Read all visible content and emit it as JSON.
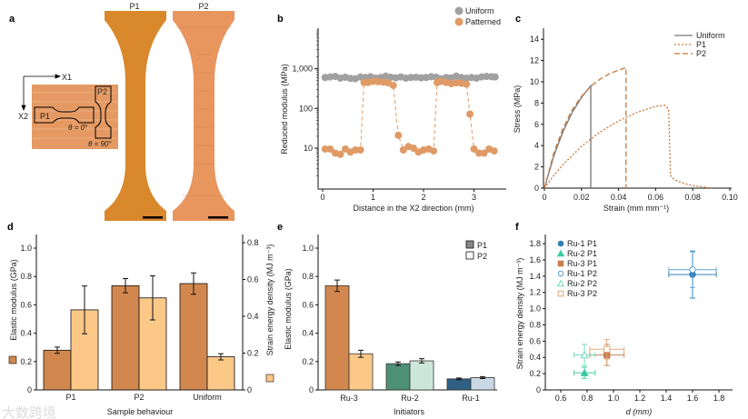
{
  "panel_labels": {
    "a": "a",
    "b": "b",
    "c": "c",
    "d": "d",
    "e": "e",
    "f": "f"
  },
  "panel_a": {
    "sample_labels": [
      "P1",
      "P2"
    ],
    "axis_x1": "X1",
    "axis_x2": "X2",
    "inset_p1": "P1",
    "inset_p2": "P2",
    "theta_0": "θ = 0°",
    "theta_90": "θ = 90°",
    "colors": {
      "p1": "#d9882b",
      "p2": "#e8955e",
      "inset": "#e59a63"
    }
  },
  "watermark": "大数跨境",
  "chart_data": [
    {
      "id": "b",
      "type": "scatter",
      "xlabel": "Distance in the X2 direction (mm)",
      "ylabel": "Reduced modulus (MPa)",
      "yscale": "log",
      "xlim": [
        -0.1,
        3.6
      ],
      "ylim": [
        1,
        10000
      ],
      "xticks": [
        "0",
        "1",
        "2",
        "3"
      ],
      "yticks": [
        "10",
        "100",
        "1,000"
      ],
      "legend": "top-right",
      "series": [
        {
          "name": "Uniform",
          "color": "#a0a0a0",
          "x": [
            0.05,
            0.15,
            0.25,
            0.35,
            0.45,
            0.55,
            0.65,
            0.75,
            0.85,
            0.95,
            1.05,
            1.15,
            1.25,
            1.35,
            1.45,
            1.55,
            1.65,
            1.75,
            1.85,
            1.95,
            2.05,
            2.15,
            2.25,
            2.35,
            2.45,
            2.55,
            2.65,
            2.75,
            2.85,
            2.95,
            3.05,
            3.15,
            3.25,
            3.35,
            3.42
          ],
          "y": [
            600,
            620,
            640,
            580,
            610,
            570,
            560,
            620,
            600,
            630,
            580,
            600,
            650,
            610,
            590,
            620,
            580,
            600,
            610,
            590,
            600,
            630,
            610,
            560,
            600,
            590,
            650,
            600,
            580,
            600,
            580,
            620,
            640,
            630,
            620
          ]
        },
        {
          "name": "Patterned",
          "color": "#e09a66",
          "dashed": true,
          "x": [
            0.05,
            0.15,
            0.25,
            0.35,
            0.45,
            0.55,
            0.65,
            0.75,
            0.82,
            0.9,
            1.0,
            1.1,
            1.2,
            1.3,
            1.4,
            1.5,
            1.6,
            1.7,
            1.8,
            1.9,
            2.0,
            2.1,
            2.2,
            2.27,
            2.35,
            2.45,
            2.55,
            2.65,
            2.75,
            2.85,
            2.92,
            3.0,
            3.1,
            3.2,
            3.3,
            3.4
          ],
          "y": [
            9.5,
            9.5,
            7.5,
            7,
            9.5,
            8,
            9,
            9,
            450,
            450,
            480,
            470,
            460,
            440,
            380,
            21,
            9,
            11,
            10,
            8,
            9,
            9.5,
            8.5,
            450,
            480,
            450,
            420,
            440,
            430,
            410,
            72,
            9.5,
            7.5,
            7.5,
            9.5,
            8.5
          ]
        }
      ]
    },
    {
      "id": "c",
      "type": "line",
      "xlabel": "Strain (mm mm⁻¹)",
      "ylabel": "Stress (MPa)",
      "xlim": [
        0,
        0.1
      ],
      "ylim": [
        0,
        15
      ],
      "xticks": [
        "0",
        "0.02",
        "0.04",
        "0.06",
        "0.08",
        "0.10"
      ],
      "yticks": [
        "0",
        "2",
        "4",
        "6",
        "8",
        "10",
        "12",
        "14"
      ],
      "legend": "top-right",
      "series": [
        {
          "name": "Uniform",
          "color": "#777777",
          "style": "solid",
          "points": [
            [
              0,
              0
            ],
            [
              0.005,
              2.99
            ],
            [
              0.01,
              5.31
            ],
            [
              0.015,
              7.12
            ],
            [
              0.02,
              8.53
            ],
            [
              0.025,
              9.63
            ],
            [
              0.025,
              0
            ]
          ]
        },
        {
          "name": "P1",
          "color": "#c9783a",
          "style": "dotted",
          "points": [
            [
              0,
              0
            ],
            [
              0.005,
              1.18
            ],
            [
              0.01,
              2.21
            ],
            [
              0.02,
              3.93
            ],
            [
              0.03,
              5.28
            ],
            [
              0.04,
              6.32
            ],
            [
              0.05,
              7.13
            ],
            [
              0.06,
              7.7
            ],
            [
              0.065,
              7.8
            ],
            [
              0.067,
              7.4
            ],
            [
              0.068,
              1.2
            ],
            [
              0.07,
              0.8
            ],
            [
              0.075,
              0.45
            ],
            [
              0.08,
              0.25
            ],
            [
              0.09,
              0
            ]
          ]
        },
        {
          "name": "P2",
          "color": "#c9783a",
          "style": "dashed",
          "points": [
            [
              0,
              0
            ],
            [
              0.005,
              3.26
            ],
            [
              0.01,
              5.62
            ],
            [
              0.015,
              7.36
            ],
            [
              0.02,
              8.63
            ],
            [
              0.025,
              9.56
            ],
            [
              0.03,
              10.25
            ],
            [
              0.035,
              10.75
            ],
            [
              0.04,
              11.1
            ],
            [
              0.044,
              11.33
            ],
            [
              0.044,
              0
            ]
          ]
        }
      ]
    },
    {
      "id": "d",
      "type": "bar",
      "xlabel": "Sample behaviour",
      "ylabel": "Elastic modulus (GPa)",
      "y2label": "Strain energy density (MJ m⁻³)",
      "categories": [
        "P1",
        "P2",
        "Uniform"
      ],
      "ylim": [
        0,
        1.1
      ],
      "y2lim": [
        0,
        0.85
      ],
      "yticks": [
        "0",
        "0.2",
        "0.4",
        "0.6",
        "0.8",
        "1.0"
      ],
      "y2ticks": [
        "0",
        "0.2",
        "0.4",
        "0.6",
        "0.8"
      ],
      "series": [
        {
          "name": "Elastic modulus",
          "axis": "left",
          "color": "#d2874f",
          "values": [
            0.28,
            0.735,
            0.75
          ],
          "errors": [
            0.022,
            0.05,
            0.075
          ]
        },
        {
          "name": "Strain energy density",
          "axis": "right",
          "color": "#fbc888",
          "values": [
            0.435,
            0.5,
            0.18
          ],
          "errors": [
            0.13,
            0.12,
            0.017
          ]
        }
      ]
    },
    {
      "id": "e",
      "type": "bar",
      "xlabel": "Initiators",
      "ylabel": "Elastic modulus (GPa)",
      "categories": [
        "Ru-3",
        "Ru-2",
        "Ru-1"
      ],
      "ylim": [
        0,
        1.1
      ],
      "yticks": [
        "0",
        "0.2",
        "0.4",
        "0.6",
        "0.8",
        "1.0"
      ],
      "legend": "top-right",
      "legend_entries": [
        "P1",
        "P2"
      ],
      "series": [
        {
          "name": "P1",
          "values": [
            0.735,
            0.185,
            0.078
          ],
          "errors": [
            0.04,
            0.012,
            0.006
          ],
          "colors": [
            "#d2874f",
            "#4e8f78",
            "#2f5f82"
          ]
        },
        {
          "name": "P2",
          "values": [
            0.255,
            0.205,
            0.087
          ],
          "errors": [
            0.025,
            0.015,
            0.007
          ],
          "colors": [
            "#fbc888",
            "#cde6dc",
            "#c9d8e3"
          ]
        }
      ]
    },
    {
      "id": "f",
      "type": "scatter",
      "xlabel": "d (mm)",
      "ylabel": "Strain energy density (MJ m⁻³)",
      "xlim": [
        0.5,
        1.9
      ],
      "ylim": [
        0,
        1.9
      ],
      "xticks": [
        "0.6",
        "0.8",
        "1.0",
        "1.2",
        "1.4",
        "1.6",
        "1.8"
      ],
      "yticks": [
        "0",
        "0.2",
        "0.4",
        "0.6",
        "0.8",
        "1.0",
        "1.2",
        "1.4",
        "1.6",
        "1.8"
      ],
      "legend": "top-left",
      "series": [
        {
          "name": "Ru-1 P1",
          "marker": "circle",
          "filled": true,
          "color": "#2f7fb8",
          "x": 1.6,
          "y": 1.42,
          "xerr": 0.18,
          "yerr": 0.29
        },
        {
          "name": "Ru-2 P1",
          "marker": "triangle",
          "filled": true,
          "color": "#3cc9a0",
          "x": 0.78,
          "y": 0.21,
          "xerr": 0.08,
          "yerr": 0.07
        },
        {
          "name": "Ru-3 P1",
          "marker": "square",
          "filled": true,
          "color": "#c8804e",
          "x": 0.95,
          "y": 0.43,
          "xerr": 0.13,
          "yerr": 0.13
        },
        {
          "name": "Ru-1 P2",
          "marker": "circle",
          "filled": false,
          "color": "#5aa0d0",
          "x": 1.6,
          "y": 1.48,
          "xerr": 0.18,
          "yerr": 0.22
        },
        {
          "name": "Ru-2 P2",
          "marker": "triangle",
          "filled": false,
          "color": "#6edcbc",
          "x": 0.78,
          "y": 0.43,
          "xerr": 0.08,
          "yerr": 0.13
        },
        {
          "name": "Ru-3 P2",
          "marker": "square",
          "filled": false,
          "color": "#e2a77a",
          "x": 0.95,
          "y": 0.5,
          "xerr": 0.13,
          "yerr": 0.12
        }
      ]
    }
  ]
}
